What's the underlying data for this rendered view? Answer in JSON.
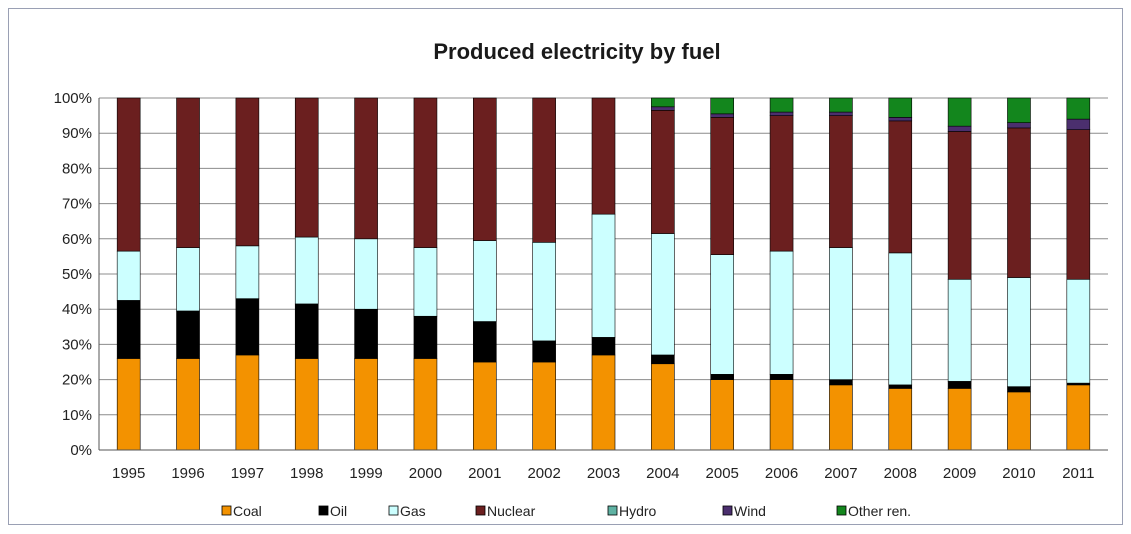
{
  "chart_data": {
    "type": "bar",
    "stacked": true,
    "title": "Produced electricity by fuel",
    "categories": [
      "1995",
      "1996",
      "1997",
      "1998",
      "1999",
      "2000",
      "2001",
      "2002",
      "2003",
      "2004",
      "2005",
      "2006",
      "2007",
      "2008",
      "2009",
      "2010",
      "2011"
    ],
    "ylim": [
      0,
      100
    ],
    "yticks": [
      "0%",
      "10%",
      "20%",
      "30%",
      "40%",
      "50%",
      "60%",
      "70%",
      "80%",
      "90%",
      "100%"
    ],
    "grid": true,
    "legend_position": "bottom",
    "series": [
      {
        "name": "Coal",
        "color": "#f39200",
        "values": [
          26,
          26,
          27,
          26,
          26,
          26,
          25,
          25,
          27,
          24.5,
          20,
          20,
          18.5,
          17.5,
          17.5,
          16.5,
          18.5
        ]
      },
      {
        "name": "Oil",
        "color": "#000000",
        "values": [
          16.5,
          13.5,
          16,
          15.5,
          14,
          12,
          11.5,
          6,
          5,
          2.5,
          1.5,
          1.5,
          1.5,
          1,
          2,
          1.5,
          0.5
        ]
      },
      {
        "name": "Gas",
        "color": "#ccffff",
        "values": [
          14,
          18,
          15,
          19,
          20,
          19.5,
          23,
          28,
          35,
          34.5,
          34,
          35,
          37.5,
          37.5,
          29,
          31,
          29.5
        ]
      },
      {
        "name": "Nuclear",
        "color": "#6b1f1f",
        "values": [
          43.5,
          42.5,
          42,
          39.5,
          40,
          42.5,
          40.5,
          41,
          33,
          35,
          39,
          38.5,
          37.5,
          37.5,
          42,
          42.5,
          42.5
        ]
      },
      {
        "name": "Hydro",
        "color": "#5fb2a3",
        "values": [
          0,
          0,
          0,
          0,
          0,
          0,
          0,
          0,
          0,
          0,
          0,
          0,
          0,
          0,
          0,
          0,
          0
        ]
      },
      {
        "name": "Wind",
        "color": "#4b2f6e",
        "values": [
          0,
          0,
          0,
          0,
          0,
          0,
          0,
          0,
          0,
          1,
          1,
          1,
          1,
          1,
          1.5,
          1.5,
          3
        ]
      },
      {
        "name": "Other ren.",
        "color": "#13861d",
        "values": [
          0,
          0,
          0,
          0,
          0,
          0,
          0,
          0,
          0,
          2.5,
          4.5,
          4,
          4,
          5.5,
          8,
          7,
          6
        ]
      }
    ]
  }
}
